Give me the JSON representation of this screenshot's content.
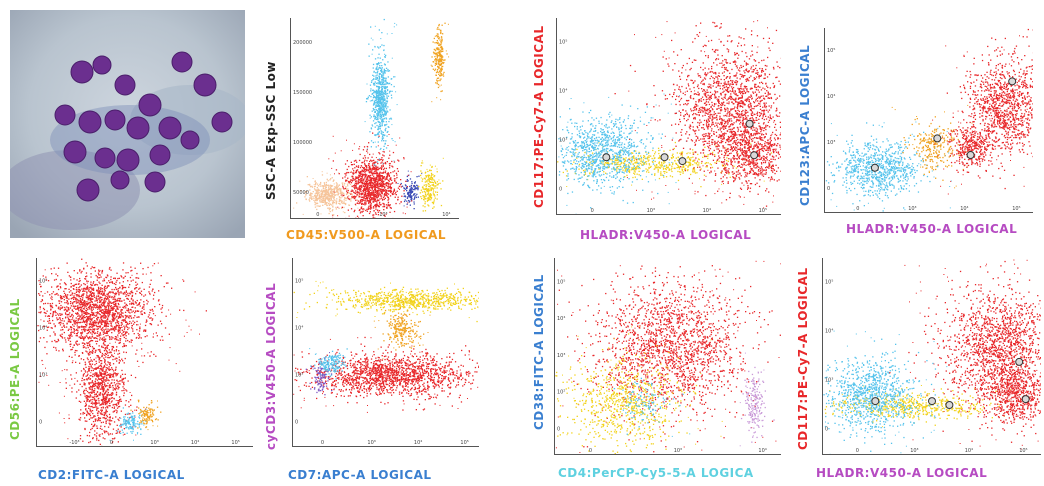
{
  "colors": {
    "red": "#e8272a",
    "light_blue": "#55c3ec",
    "orange": "#f0a322",
    "yellow": "#f2d21b",
    "peach": "#f6c49a",
    "dark_blue": "#3b4bb5",
    "violet": "#c99ad8",
    "purple_dot": "#7e57c2",
    "green_label": "#7ac943",
    "magenta_label": "#b64bc2",
    "blue_label": "#3a7fd0",
    "cyan_label": "#5fd1e0",
    "orange_label": "#f09a1f"
  },
  "photo": {
    "alt": "micrograph"
  },
  "chart_data": [
    {
      "type": "scatter",
      "xlabel": "CD45:V500-A LOGICAL",
      "ylabel": "SSC-A Exp-SSC Low",
      "xlabel_color": "#f09a1f",
      "ylabel_color": "#222222",
      "xticks": [
        "0",
        "10³",
        "10⁴"
      ],
      "yticks": [
        "50000",
        "100000",
        "150000",
        "200000"
      ],
      "clusters": [
        {
          "color": "#f6c49a",
          "cx": 0.22,
          "cy": 0.12,
          "rx": 0.12,
          "ry": 0.06,
          "n": 450
        },
        {
          "color": "#e8272a",
          "cx": 0.48,
          "cy": 0.17,
          "rx": 0.13,
          "ry": 0.13,
          "n": 1100
        },
        {
          "color": "#55c3ec",
          "cx": 0.53,
          "cy": 0.6,
          "rx": 0.05,
          "ry": 0.19,
          "n": 650
        },
        {
          "color": "#f0a322",
          "cx": 0.88,
          "cy": 0.8,
          "rx": 0.03,
          "ry": 0.13,
          "n": 220
        },
        {
          "color": "#3b4bb5",
          "cx": 0.71,
          "cy": 0.13,
          "rx": 0.04,
          "ry": 0.06,
          "n": 120
        },
        {
          "color": "#f2d21b",
          "cx": 0.82,
          "cy": 0.15,
          "rx": 0.05,
          "ry": 0.08,
          "n": 200
        }
      ],
      "centroids": []
    },
    {
      "type": "scatter",
      "xlabel": "HLADR:V450-A LOGICAL",
      "ylabel": "CD117:PE-Cy7-A LOGICAL",
      "xlabel_color": "#b64bc2",
      "ylabel_color": "#e8272a",
      "xticks": [
        "0",
        "10³",
        "10⁴",
        "10⁵"
      ],
      "yticks": [
        "0",
        "10³",
        "10⁴",
        "10⁵"
      ],
      "clusters": [
        {
          "color": "#f2d21b",
          "cx": 0.42,
          "cy": 0.26,
          "rx": 0.32,
          "ry": 0.06,
          "n": 500
        },
        {
          "color": "#55c3ec",
          "cx": 0.2,
          "cy": 0.32,
          "rx": 0.18,
          "ry": 0.16,
          "n": 900
        },
        {
          "color": "#e8272a",
          "cx": 0.78,
          "cy": 0.55,
          "rx": 0.24,
          "ry": 0.28,
          "n": 1600
        },
        {
          "color": "#e8272a",
          "cx": 0.85,
          "cy": 0.3,
          "rx": 0.15,
          "ry": 0.14,
          "n": 600
        }
      ],
      "centroids": [
        [
          0.22,
          0.29
        ],
        [
          0.48,
          0.29
        ],
        [
          0.56,
          0.27
        ],
        [
          0.86,
          0.46
        ],
        [
          0.88,
          0.3
        ]
      ]
    },
    {
      "type": "scatter",
      "xlabel": "HLADR:V450-A LOGICAL",
      "ylabel": "CD123:APC-A LOGICAL",
      "xlabel_color": "#b64bc2",
      "ylabel_color": "#3a7fd0",
      "xticks": [
        "0",
        "10³",
        "10⁴",
        "10⁵"
      ],
      "yticks": [
        "0",
        "10³",
        "10⁴",
        "10⁵"
      ],
      "clusters": [
        {
          "color": "#55c3ec",
          "cx": 0.25,
          "cy": 0.24,
          "rx": 0.18,
          "ry": 0.13,
          "n": 750
        },
        {
          "color": "#f0a322",
          "cx": 0.52,
          "cy": 0.36,
          "rx": 0.1,
          "ry": 0.12,
          "n": 250
        },
        {
          "color": "#e8272a",
          "cx": 0.86,
          "cy": 0.58,
          "rx": 0.16,
          "ry": 0.24,
          "n": 1000
        },
        {
          "color": "#e8272a",
          "cx": 0.7,
          "cy": 0.36,
          "rx": 0.1,
          "ry": 0.1,
          "n": 350
        }
      ],
      "centroids": [
        [
          0.24,
          0.24
        ],
        [
          0.54,
          0.4
        ],
        [
          0.7,
          0.31
        ],
        [
          0.9,
          0.71
        ]
      ]
    },
    {
      "type": "scatter",
      "xlabel": "CD2:FITC-A LOGICAL",
      "ylabel": "CD56:PE-A LOGICAL",
      "xlabel_color": "#3a7fd0",
      "ylabel_color": "#7ac943",
      "xticks": [
        "-10³",
        "0",
        "10³",
        "10⁴",
        "10⁵"
      ],
      "yticks": [
        "0",
        "10³",
        "10⁴",
        "10⁵"
      ],
      "clusters": [
        {
          "color": "#e8272a",
          "cx": 0.27,
          "cy": 0.72,
          "rx": 0.24,
          "ry": 0.2,
          "n": 1800
        },
        {
          "color": "#e8272a",
          "cx": 0.3,
          "cy": 0.3,
          "rx": 0.1,
          "ry": 0.24,
          "n": 900
        },
        {
          "color": "#55c3ec",
          "cx": 0.43,
          "cy": 0.13,
          "rx": 0.05,
          "ry": 0.05,
          "n": 120
        },
        {
          "color": "#f0a322",
          "cx": 0.5,
          "cy": 0.17,
          "rx": 0.04,
          "ry": 0.05,
          "n": 100
        }
      ],
      "centroids": []
    },
    {
      "type": "scatter",
      "xlabel": "CD7:APC-A LOGICAL",
      "ylabel": "cyCD3:V450-A LOGICAL",
      "xlabel_color": "#3a7fd0",
      "ylabel_color": "#b64bc2",
      "xticks": [
        "0",
        "10³",
        "10⁴",
        "10⁵"
      ],
      "yticks": [
        "0",
        "10³",
        "10⁴",
        "10⁵"
      ],
      "clusters": [
        {
          "color": "#f2d21b",
          "cx": 0.62,
          "cy": 0.78,
          "rx": 0.36,
          "ry": 0.05,
          "n": 700
        },
        {
          "color": "#f0a322",
          "cx": 0.58,
          "cy": 0.62,
          "rx": 0.08,
          "ry": 0.08,
          "n": 220
        },
        {
          "color": "#e8272a",
          "cx": 0.52,
          "cy": 0.38,
          "rx": 0.38,
          "ry": 0.1,
          "n": 1500
        },
        {
          "color": "#55c3ec",
          "cx": 0.2,
          "cy": 0.44,
          "rx": 0.08,
          "ry": 0.06,
          "n": 160
        },
        {
          "color": "#7e57c2",
          "cx": 0.14,
          "cy": 0.36,
          "rx": 0.04,
          "ry": 0.07,
          "n": 90
        }
      ],
      "centroids": []
    },
    {
      "type": "scatter",
      "xlabel": "CD4:PerCP-Cy5-5-A LOGICA",
      "ylabel": "CD38:FITC-A LOGICAL",
      "xlabel_color": "#5fd1e0",
      "ylabel_color": "#3a7fd0",
      "xticks": [
        "0",
        "10³",
        "10⁴"
      ],
      "yticks": [
        "0",
        "10²",
        "10³",
        "10⁴",
        "10⁵"
      ],
      "clusters": [
        {
          "color": "#e8272a",
          "cx": 0.5,
          "cy": 0.55,
          "rx": 0.3,
          "ry": 0.3,
          "n": 1800
        },
        {
          "color": "#f2d21b",
          "cx": 0.3,
          "cy": 0.26,
          "rx": 0.22,
          "ry": 0.2,
          "n": 700
        },
        {
          "color": "#c99ad8",
          "cx": 0.88,
          "cy": 0.26,
          "rx": 0.04,
          "ry": 0.14,
          "n": 180
        },
        {
          "color": "#55c3ec",
          "cx": 0.4,
          "cy": 0.26,
          "rx": 0.1,
          "ry": 0.1,
          "n": 100
        }
      ],
      "centroids": []
    },
    {
      "type": "scatter",
      "xlabel": "HLADR:V450-A LOGICAL",
      "ylabel": "CD117:PE-Cy7-A LOGICAL",
      "xlabel_color": "#b64bc2",
      "ylabel_color": "#e8272a",
      "xticks": [
        "0",
        "10³",
        "10⁴",
        "10⁵"
      ],
      "yticks": [
        "0",
        "10³",
        "10⁴",
        "10⁵"
      ],
      "clusters": [
        {
          "color": "#f2d21b",
          "cx": 0.4,
          "cy": 0.25,
          "rx": 0.34,
          "ry": 0.06,
          "n": 500
        },
        {
          "color": "#55c3ec",
          "cx": 0.22,
          "cy": 0.3,
          "rx": 0.18,
          "ry": 0.17,
          "n": 900
        },
        {
          "color": "#e8272a",
          "cx": 0.8,
          "cy": 0.55,
          "rx": 0.22,
          "ry": 0.26,
          "n": 1500
        },
        {
          "color": "#e8272a",
          "cx": 0.88,
          "cy": 0.3,
          "rx": 0.13,
          "ry": 0.14,
          "n": 550
        }
      ],
      "centroids": [
        [
          0.24,
          0.27
        ],
        [
          0.5,
          0.27
        ],
        [
          0.58,
          0.25
        ],
        [
          0.9,
          0.47
        ],
        [
          0.93,
          0.28
        ]
      ]
    }
  ]
}
